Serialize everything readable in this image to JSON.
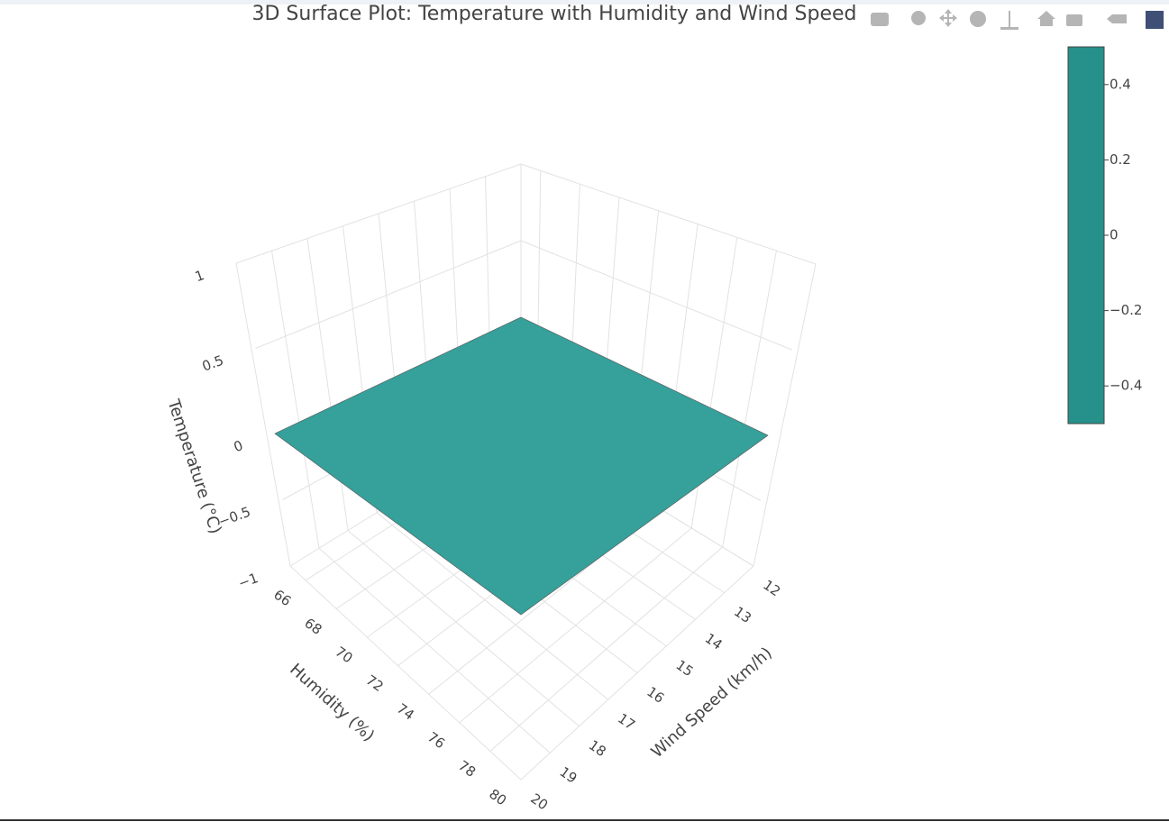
{
  "chart_data": {
    "type": "surface",
    "title": "3D Surface Plot: Temperature with Humidity and Wind Speed",
    "x_label": "Humidity (%)",
    "y_label": "Wind Speed (km/h)",
    "z_label": "Temperature (°C)",
    "x": [
      65,
      80
    ],
    "y": [
      12,
      20
    ],
    "z": [
      [
        0,
        0
      ],
      [
        0,
        0
      ]
    ],
    "color": "#36a09b",
    "xlim": [
      65,
      80
    ],
    "xticks": [
      66,
      68,
      70,
      72,
      74,
      76,
      78,
      80
    ],
    "ylim": [
      12,
      20
    ],
    "yticks": [
      12,
      13,
      14,
      15,
      16,
      17,
      18,
      19,
      20
    ],
    "zlim": [
      -1,
      1
    ],
    "zticks": [
      {
        "value": -1,
        "label": "−1"
      },
      {
        "value": -0.5,
        "label": "−0.5"
      },
      0,
      0.5,
      1
    ],
    "colorbar": {
      "color": "#26918a",
      "lim": [
        -0.5,
        0.5
      ],
      "ticks": [
        0.4,
        0.2,
        0,
        {
          "value": -0.2,
          "label": "−0.2"
        },
        {
          "value": -0.4,
          "label": "−0.4"
        }
      ]
    },
    "grid": true
  }
}
